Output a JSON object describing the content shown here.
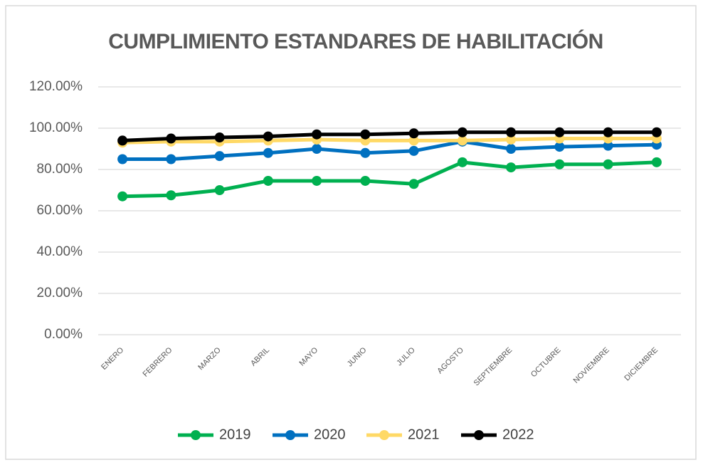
{
  "chart_data": {
    "type": "line",
    "title": "CUMPLIMIENTO ESTANDARES DE HABILITACIÓN",
    "categories": [
      "ENERO",
      "FEBRERO",
      "MARZO",
      "ABRIL",
      "MAYO",
      "JUNIO",
      "JULIO",
      "AGOSTO",
      "SEPTIEMBRE",
      "OCTUBRE",
      "NOVIEMBRE",
      "DICIEMBRE"
    ],
    "series": [
      {
        "name": "2019",
        "color": "#00b050",
        "values": [
          67,
          67.5,
          70,
          74.5,
          74.5,
          74.5,
          73,
          83.5,
          81,
          82.5,
          82.5,
          83.5
        ]
      },
      {
        "name": "2020",
        "color": "#0070c0",
        "values": [
          85,
          85,
          86.5,
          88,
          90,
          88,
          89,
          93.5,
          90,
          91,
          91.5,
          92
        ]
      },
      {
        "name": "2021",
        "color": "#ffd966",
        "values": [
          93,
          93.5,
          93.5,
          94,
          94.5,
          94,
          94,
          94,
          94.5,
          95,
          95,
          95
        ]
      },
      {
        "name": "2022",
        "color": "#000000",
        "values": [
          94,
          95,
          95.5,
          96,
          97,
          97,
          97.5,
          98,
          98,
          98,
          98,
          98
        ]
      }
    ],
    "ylim": [
      0,
      120
    ],
    "yticks": [
      {
        "value": 0,
        "label": "0.00%"
      },
      {
        "value": 20,
        "label": "20.00%"
      },
      {
        "value": 40,
        "label": "40.00%"
      },
      {
        "value": 60,
        "label": "60.00%"
      },
      {
        "value": 80,
        "label": "80.00%"
      },
      {
        "value": 100,
        "label": "100.00%"
      },
      {
        "value": 120,
        "label": "120.00%"
      }
    ],
    "grid": true,
    "legend": "bottom"
  }
}
